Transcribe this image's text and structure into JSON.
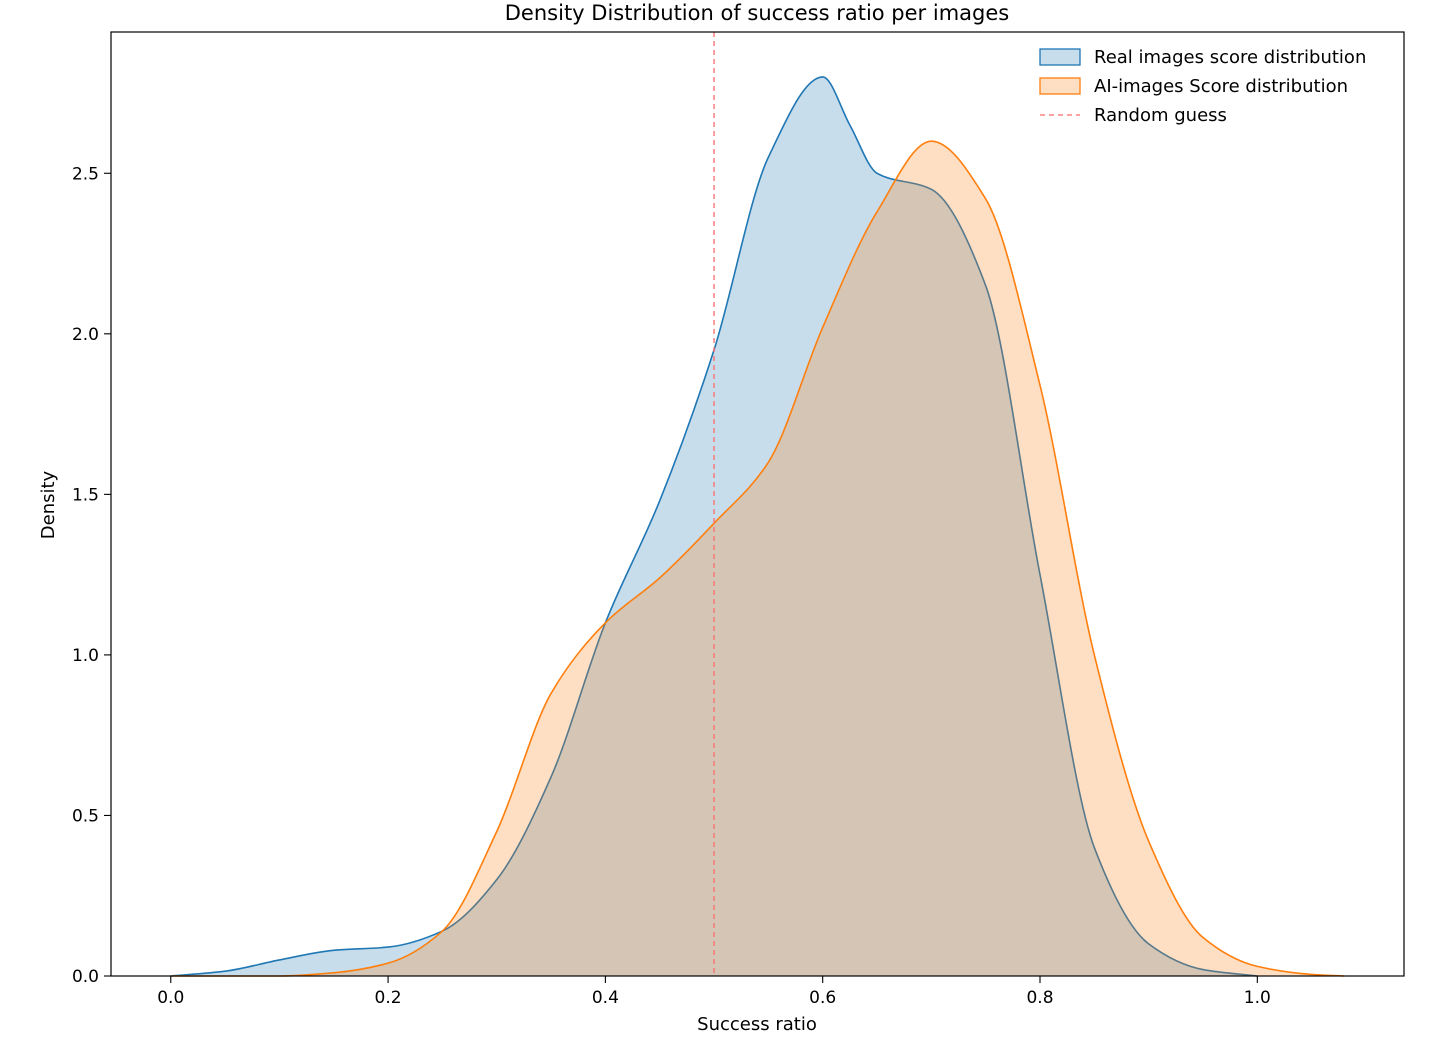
{
  "chart_data": {
    "type": "area",
    "title": "Density Distribution of success ratio per images",
    "xlabel": "Success ratio",
    "ylabel": "Density",
    "xlim": [
      -0.055,
      1.135
    ],
    "ylim": [
      0,
      2.94
    ],
    "xticks": [
      0.0,
      0.2,
      0.4,
      0.6,
      0.8,
      1.0
    ],
    "xtick_labels": [
      "0.0",
      "0.2",
      "0.4",
      "0.6",
      "0.8",
      "1.0"
    ],
    "yticks": [
      0.0,
      0.5,
      1.0,
      1.5,
      2.0,
      2.5
    ],
    "ytick_labels": [
      "0.0",
      "0.5",
      "1.0",
      "1.5",
      "2.0",
      "2.5"
    ],
    "grid": false,
    "legend_position": "top-right",
    "series": [
      {
        "name": "Real images score distribution",
        "line_color": "#1f77b4",
        "fill_color": "#1f77b4",
        "fill_opacity": 0.25,
        "x": [
          0.0,
          0.05,
          0.1,
          0.15,
          0.2,
          0.25,
          0.3,
          0.35,
          0.4,
          0.45,
          0.5,
          0.55,
          0.6,
          0.625,
          0.65,
          0.7,
          0.75,
          0.8,
          0.85,
          0.9,
          0.95,
          1.0
        ],
        "y": [
          0.0,
          0.015,
          0.05,
          0.08,
          0.09,
          0.14,
          0.3,
          0.62,
          1.1,
          1.48,
          1.95,
          2.55,
          2.8,
          2.65,
          2.5,
          2.45,
          2.15,
          1.25,
          0.4,
          0.1,
          0.02,
          0.0
        ]
      },
      {
        "name": "AI-images Score distribution",
        "line_color": "#ff7f0e",
        "fill_color": "#ff7f0e",
        "fill_opacity": 0.25,
        "x": [
          0.0,
          0.1,
          0.15,
          0.2,
          0.25,
          0.3,
          0.35,
          0.4,
          0.45,
          0.5,
          0.55,
          0.6,
          0.65,
          0.7,
          0.75,
          0.8,
          0.85,
          0.9,
          0.95,
          1.0,
          1.05,
          1.08
        ],
        "y": [
          0.0,
          0.0,
          0.01,
          0.04,
          0.14,
          0.45,
          0.88,
          1.1,
          1.24,
          1.41,
          1.6,
          2.02,
          2.38,
          2.6,
          2.42,
          1.84,
          1.0,
          0.42,
          0.12,
          0.03,
          0.005,
          0.0
        ]
      }
    ],
    "reference_lines": [
      {
        "name": "Random guess",
        "x": 0.5,
        "color": "#ff6b6b",
        "style": "dashed"
      }
    ]
  }
}
